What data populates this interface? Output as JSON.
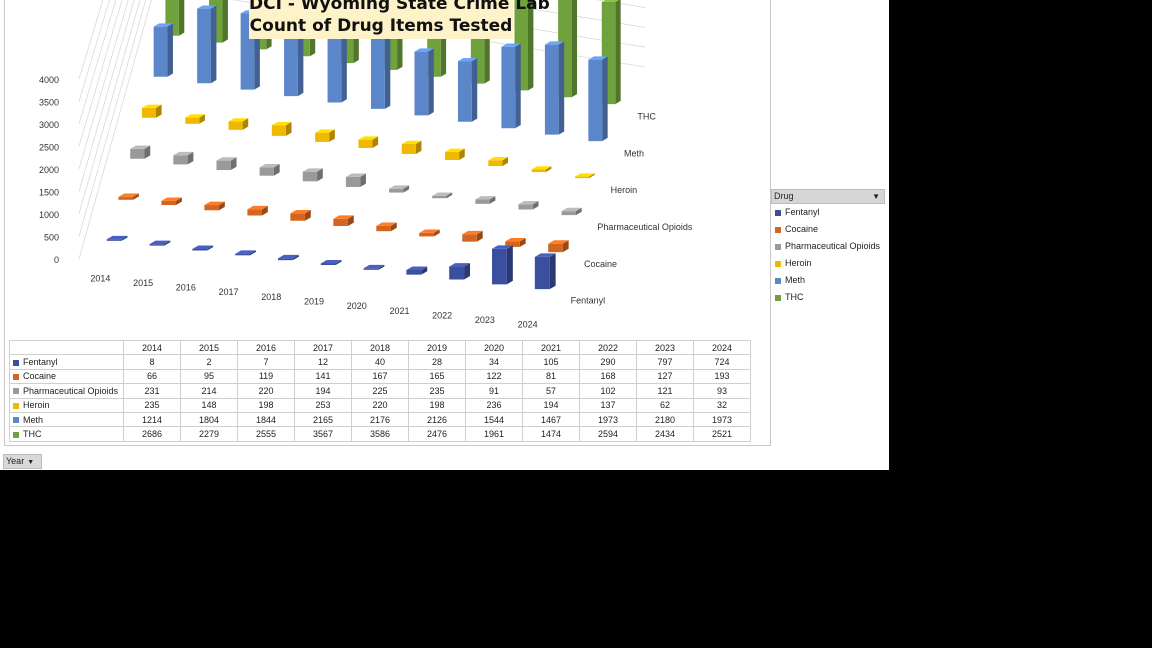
{
  "title_lines": [
    "DCI - Wyoming State Crime Lab",
    "Count of Drug Items Tested"
  ],
  "legend_header": "Drug",
  "year_button": "Year",
  "chart_data": {
    "type": "bar",
    "subtype": "3d-column",
    "title": "DCI - Wyoming State Crime Lab Count of Drug Items Tested",
    "categories": [
      "2014",
      "2015",
      "2016",
      "2017",
      "2018",
      "2019",
      "2020",
      "2021",
      "2022",
      "2023",
      "2024"
    ],
    "ylim": [
      0,
      4000
    ],
    "yticks": [
      0,
      500,
      1000,
      1500,
      2000,
      2500,
      3000,
      3500,
      4000
    ],
    "legend_position": "right",
    "grid": true,
    "series": [
      {
        "name": "Fentanyl",
        "color": "#3a4f9e",
        "values": [
          8,
          2,
          7,
          12,
          40,
          28,
          34,
          105,
          290,
          797,
          724
        ]
      },
      {
        "name": "Cocaine",
        "color": "#d2651f",
        "values": [
          66,
          95,
          119,
          141,
          167,
          165,
          122,
          81,
          168,
          127,
          193
        ]
      },
      {
        "name": "Pharmaceutical Opioids",
        "color": "#9a9a9a",
        "values": [
          231,
          214,
          220,
          194,
          225,
          235,
          91,
          57,
          102,
          121,
          93
        ]
      },
      {
        "name": "Heroin",
        "color": "#f0b800",
        "values": [
          235,
          148,
          198,
          253,
          220,
          198,
          236,
          194,
          137,
          62,
          32
        ]
      },
      {
        "name": "Meth",
        "color": "#5b86c9",
        "values": [
          1214,
          1804,
          1844,
          2165,
          2176,
          2126,
          1544,
          1467,
          1973,
          2180,
          1973
        ]
      },
      {
        "name": "THC",
        "color": "#6fa23c",
        "values": [
          2686,
          2279,
          2555,
          3567,
          3586,
          2476,
          1961,
          1474,
          2594,
          2434,
          2521
        ]
      }
    ]
  }
}
